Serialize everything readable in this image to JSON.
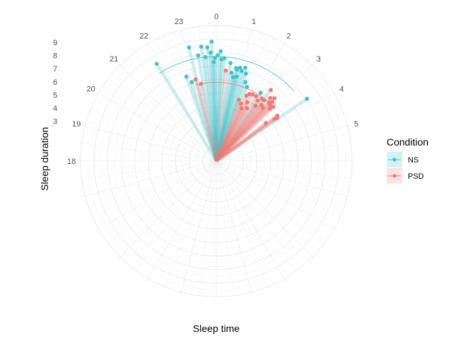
{
  "chart_data": {
    "type": "polar-segment",
    "xlabel": "Sleep time",
    "ylabel": "Sleep duration",
    "angle_ticks": [
      "0",
      "1",
      "2",
      "3",
      "4",
      "5",
      "18",
      "19",
      "20",
      "21",
      "22",
      "23"
    ],
    "angle_tick_hours": [
      0,
      1,
      2,
      3,
      4,
      5,
      18,
      19,
      20,
      21,
      22,
      23
    ],
    "radial_ticks": [
      "3",
      "4",
      "5",
      "6",
      "7",
      "8",
      "9"
    ],
    "radial_tick_values": [
      3,
      4,
      5,
      6,
      7,
      8,
      9
    ],
    "radial_range": [
      0,
      10.2
    ],
    "grid": true,
    "legend": {
      "title": "Condition",
      "position": "right",
      "entries": [
        {
          "label": "NS",
          "color": "#3fc3c8"
        },
        {
          "label": "PSD",
          "color": "#f17a72"
        }
      ]
    },
    "series": [
      {
        "name": "NS",
        "color": "#3fc3c8",
        "mean": {
          "start_hour": 21.8,
          "end_hour": 3.2,
          "duration": 7.7
        },
        "points": [
          {
            "hour": 21.9,
            "duration": 8.4
          },
          {
            "hour": 22.7,
            "duration": 6.6
          },
          {
            "hour": 22.85,
            "duration": 6.1
          },
          {
            "hour": 23.1,
            "duration": 8.6
          },
          {
            "hour": 23.35,
            "duration": 7.9
          },
          {
            "hour": 23.5,
            "duration": 8.5
          },
          {
            "hour": 23.6,
            "duration": 7.7
          },
          {
            "hour": 23.7,
            "duration": 8.4
          },
          {
            "hour": 23.8,
            "duration": 8.0
          },
          {
            "hour": 23.85,
            "duration": 8.8
          },
          {
            "hour": 23.9,
            "duration": 7.3
          },
          {
            "hour": 23.95,
            "duration": 7.6
          },
          {
            "hour": 0.05,
            "duration": 7.8
          },
          {
            "hour": 0.15,
            "duration": 8.1
          },
          {
            "hour": 0.2,
            "duration": 7.5
          },
          {
            "hour": 0.3,
            "duration": 7.6
          },
          {
            "hour": 0.55,
            "duration": 7.3
          },
          {
            "hour": 0.65,
            "duration": 6.6
          },
          {
            "hour": 0.75,
            "duration": 6.3
          },
          {
            "hour": 0.8,
            "duration": 7.0
          },
          {
            "hour": 0.85,
            "duration": 6.9
          },
          {
            "hour": 0.9,
            "duration": 6.4
          },
          {
            "hour": 0.95,
            "duration": 7.1
          },
          {
            "hour": 1.05,
            "duration": 6.9
          },
          {
            "hour": 1.15,
            "duration": 7.2
          },
          {
            "hour": 1.25,
            "duration": 6.8
          },
          {
            "hour": 1.35,
            "duration": 6.2
          },
          {
            "hour": 1.5,
            "duration": 5.9
          },
          {
            "hour": 2.2,
            "duration": 6.0
          },
          {
            "hour": 2.55,
            "duration": 5.7
          },
          {
            "hour": 3.7,
            "duration": 8.1
          }
        ]
      },
      {
        "name": "PSD",
        "color": "#f17a72",
        "mean": {
          "start_hour": 23.0,
          "end_hour": 3.0,
          "duration": 5.8
        },
        "points": [
          {
            "hour": 23.05,
            "duration": 6.2
          },
          {
            "hour": 23.25,
            "duration": 5.8
          },
          {
            "hour": 0.4,
            "duration": 6.7
          },
          {
            "hour": 1.35,
            "duration": 4.8
          },
          {
            "hour": 1.55,
            "duration": 4.6
          },
          {
            "hour": 1.65,
            "duration": 5.3
          },
          {
            "hour": 1.7,
            "duration": 4.3
          },
          {
            "hour": 1.75,
            "duration": 5.5
          },
          {
            "hour": 1.85,
            "duration": 4.9
          },
          {
            "hour": 1.9,
            "duration": 5.6
          },
          {
            "hour": 2.0,
            "duration": 4.5
          },
          {
            "hour": 2.1,
            "duration": 5.6
          },
          {
            "hour": 2.3,
            "duration": 5.4
          },
          {
            "hour": 2.35,
            "duration": 5.0
          },
          {
            "hour": 2.4,
            "duration": 5.7
          },
          {
            "hour": 2.5,
            "duration": 6.6
          },
          {
            "hour": 2.6,
            "duration": 5.3
          },
          {
            "hour": 2.7,
            "duration": 6.1
          },
          {
            "hour": 2.75,
            "duration": 5.2
          },
          {
            "hour": 2.8,
            "duration": 5.8
          },
          {
            "hour": 2.85,
            "duration": 6.3
          },
          {
            "hour": 2.9,
            "duration": 6.0
          },
          {
            "hour": 2.95,
            "duration": 5.7
          },
          {
            "hour": 3.05,
            "duration": 5.5
          },
          {
            "hour": 3.1,
            "duration": 5.8
          },
          {
            "hour": 3.5,
            "duration": 4.6
          },
          {
            "hour": 3.55,
            "duration": 5.6
          },
          {
            "hour": 3.6,
            "duration": 5.3
          },
          {
            "hour": 3.65,
            "duration": 5.5
          }
        ]
      }
    ]
  }
}
